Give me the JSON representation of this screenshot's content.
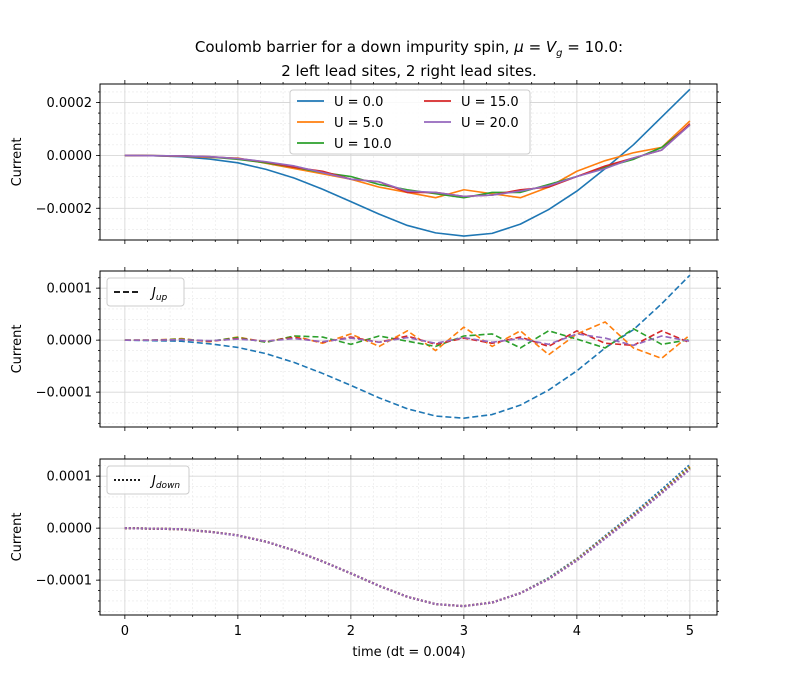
{
  "title_line1_prefix": "Coulomb barrier for a down impurity spin, ",
  "title_line1_mu": "μ",
  "title_line1_eq": " = ",
  "title_line1_V": "V",
  "title_line1_g": "g",
  "title_line1_val": " = 10.0:",
  "title_line2": "2 left lead sites, 2 right lead sites.",
  "chart_data": {
    "type": "line",
    "x": [
      0,
      0.25,
      0.5,
      0.75,
      1,
      1.25,
      1.5,
      1.75,
      2,
      2.25,
      2.5,
      2.75,
      3,
      3.25,
      3.5,
      3.75,
      4,
      4.25,
      4.5,
      4.75,
      5
    ],
    "xlabel": "time (dt = 0.004)",
    "xlim": [
      -0.22,
      5.24
    ],
    "xticks": [
      "0",
      "1",
      "2",
      "3",
      "4",
      "5"
    ],
    "colors": {
      "U = 0.0": "#1f77b4",
      "U = 5.0": "#ff7f0e",
      "U = 10.0": "#2ca02c",
      "U = 15.0": "#d62728",
      "U = 20.0": "#9467bd"
    },
    "panels": [
      {
        "ylabel": "Current",
        "ylim": [
          -0.00032,
          0.00027
        ],
        "yticks": [
          0.0002,
          0,
          -0.0002
        ],
        "ytick_labels": [
          "0.0002",
          "0.0000",
          "−0.0002"
        ],
        "style": "solid",
        "legend": "top-center",
        "series": [
          {
            "name": "U = 0.0",
            "values": [
              0,
              -1e-06,
              -5e-06,
              -1.4e-05,
              -2.8e-05,
              -5.3e-05,
              -8.6e-05,
              -0.000128,
              -0.000175,
              -0.000222,
              -0.000265,
              -0.000293,
              -0.000305,
              -0.000295,
              -0.00026,
              -0.000205,
              -0.000135,
              -5e-05,
              4e-05,
              0.000145,
              0.00025
            ]
          },
          {
            "name": "U = 5.0",
            "values": [
              0,
              -1e-06,
              -3e-06,
              -8e-06,
              -1e-05,
              -3e-05,
              -5e-05,
              -7e-05,
              -9e-05,
              -0.00012,
              -0.00014,
              -0.00016,
              -0.00013,
              -0.000145,
              -0.00016,
              -0.00012,
              -6e-05,
              -2e-05,
              1e-05,
              3e-05,
              0.00013
            ]
          },
          {
            "name": "U = 10.0",
            "values": [
              0,
              -1e-06,
              -2e-06,
              -6e-06,
              -1.5e-05,
              -2.8e-05,
              -4.5e-05,
              -6.5e-05,
              -8e-05,
              -0.00011,
              -0.00013,
              -0.000145,
              -0.00016,
              -0.00014,
              -0.00014,
              -0.00011,
              -8e-05,
              -4.5e-05,
              -1.5e-05,
              3e-05,
              0.000115
            ]
          },
          {
            "name": "U = 15.0",
            "values": [
              0,
              -1e-06,
              -2e-06,
              -5e-06,
              -1.2e-05,
              -2.5e-05,
              -4.5e-05,
              -6e-05,
              -9e-05,
              -0.0001,
              -0.00014,
              -0.00014,
              -0.000155,
              -0.00015,
              -0.00013,
              -0.00012,
              -8e-05,
              -4e-05,
              -1e-05,
              2e-05,
              0.00012
            ]
          },
          {
            "name": "U = 20.0",
            "values": [
              0,
              -1e-06,
              -2e-06,
              -5e-06,
              -1.2e-05,
              -2.4e-05,
              -4e-05,
              -6.5e-05,
              -9e-05,
              -0.0001,
              -0.000135,
              -0.00014,
              -0.000155,
              -0.00015,
              -0.000135,
              -0.000115,
              -8e-05,
              -5e-05,
              -1e-05,
              2e-05,
              0.000115
            ]
          }
        ]
      },
      {
        "ylabel": "Current",
        "ylim": [
          -0.000167,
          0.000133
        ],
        "yticks": [
          0.0001,
          0,
          -0.0001
        ],
        "ytick_labels": [
          "0.0001",
          "0.0000",
          "−0.0001"
        ],
        "style": "dashed",
        "legend": "top-left",
        "legend_label": "J",
        "legend_sub": "up",
        "series": [
          {
            "name": "U = 0.0",
            "values": [
              0,
              -1e-06,
              -2e-06,
              -7e-06,
              -1.4e-05,
              -2.6e-05,
              -4.3e-05,
              -6.4e-05,
              -8.7e-05,
              -0.000111,
              -0.000132,
              -0.000146,
              -0.00015,
              -0.000143,
              -0.000125,
              -9.6e-05,
              -5.9e-05,
              -1.5e-05,
              2e-05,
              7e-05,
              0.000125
            ]
          },
          {
            "name": "U = 5.0",
            "values": [
              0,
              0,
              3e-06,
              -3e-06,
              6e-06,
              -4e-06,
              8e-06,
              -6e-06,
              1.2e-05,
              -1.2e-05,
              1.8e-05,
              -2e-05,
              2.5e-05,
              -1.2e-05,
              1.8e-05,
              -2.8e-05,
              1.2e-05,
              3.5e-05,
              -1.5e-05,
              -3.5e-05,
              1e-05
            ]
          },
          {
            "name": "U = 10.0",
            "values": [
              0,
              0,
              2e-06,
              -2e-06,
              5e-06,
              -4e-06,
              8e-06,
              6e-06,
              -8e-06,
              8e-06,
              -2e-06,
              -1.2e-05,
              8e-06,
              1.2e-05,
              -1.5e-05,
              1.8e-05,
              2e-06,
              -1.5e-05,
              2.2e-05,
              -8e-06,
              1e-06
            ]
          },
          {
            "name": "U = 15.0",
            "values": [
              0,
              0,
              1e-06,
              -2e-06,
              3e-06,
              -2e-06,
              5e-06,
              -4e-06,
              6e-06,
              -4e-06,
              8e-06,
              -8e-06,
              4e-06,
              -6e-06,
              6e-06,
              -1.2e-05,
              1.8e-05,
              -6e-06,
              -1e-05,
              1.8e-05,
              -5e-06
            ]
          },
          {
            "name": "U = 20.0",
            "values": [
              0,
              0,
              1e-06,
              -1e-06,
              2e-06,
              -2e-06,
              3e-06,
              -3e-06,
              4e-06,
              -4e-06,
              5e-06,
              -6e-06,
              5e-06,
              -4e-06,
              3e-06,
              -8e-06,
              1.2e-05,
              4e-06,
              -1e-05,
              8e-06,
              -2e-06
            ]
          }
        ]
      },
      {
        "ylabel": "Current",
        "ylim": [
          -0.000167,
          0.000133
        ],
        "yticks": [
          0.0001,
          0,
          -0.0001
        ],
        "ytick_labels": [
          "0.0001",
          "0.0000",
          "−0.0001"
        ],
        "style": "dotted",
        "legend": "top-left",
        "legend_label": "J",
        "legend_sub": "down",
        "series": [
          {
            "name": "U = 0.0",
            "values": [
              0,
              -1e-06,
              -2e-06,
              -7e-06,
              -1.4e-05,
              -2.6e-05,
              -4.3e-05,
              -6.4e-05,
              -8.7e-05,
              -0.000111,
              -0.000132,
              -0.000146,
              -0.00015,
              -0.000143,
              -0.000125,
              -9.6e-05,
              -5.9e-05,
              -1.5e-05,
              2.8e-05,
              7.4e-05,
              0.000122
            ]
          },
          {
            "name": "U = 5.0",
            "values": [
              0,
              -1e-06,
              -2e-06,
              -7e-06,
              -1.4e-05,
              -2.6e-05,
              -4.3e-05,
              -6.4e-05,
              -8.7e-05,
              -0.000111,
              -0.000132,
              -0.000146,
              -0.00015,
              -0.000143,
              -0.000125,
              -9.7e-05,
              -6e-05,
              -1.7e-05,
              2.5e-05,
              7e-05,
              0.000118
            ]
          },
          {
            "name": "U = 10.0",
            "values": [
              0,
              -1e-06,
              -2e-06,
              -7e-06,
              -1.4e-05,
              -2.6e-05,
              -4.3e-05,
              -6.4e-05,
              -8.7e-05,
              -0.000111,
              -0.000132,
              -0.000146,
              -0.00015,
              -0.000143,
              -0.000125,
              -9.7e-05,
              -6.1e-05,
              -1.8e-05,
              2.4e-05,
              6.9e-05,
              0.000116
            ]
          },
          {
            "name": "U = 15.0",
            "values": [
              0,
              -1e-06,
              -2e-06,
              -7e-06,
              -1.4e-05,
              -2.6e-05,
              -4.3e-05,
              -6.4e-05,
              -8.7e-05,
              -0.000111,
              -0.000132,
              -0.000146,
              -0.00015,
              -0.000143,
              -0.000125,
              -9.8e-05,
              -6.2e-05,
              -1.9e-05,
              2.3e-05,
              6.8e-05,
              0.000114
            ]
          },
          {
            "name": "U = 20.0",
            "values": [
              0,
              -1e-06,
              -2e-06,
              -7e-06,
              -1.4e-05,
              -2.6e-05,
              -4.3e-05,
              -6.4e-05,
              -8.7e-05,
              -0.000111,
              -0.000132,
              -0.000146,
              -0.00015,
              -0.000143,
              -0.000125,
              -9.8e-05,
              -6.2e-05,
              -2e-05,
              2.2e-05,
              6.7e-05,
              0.000113
            ]
          }
        ]
      }
    ]
  }
}
